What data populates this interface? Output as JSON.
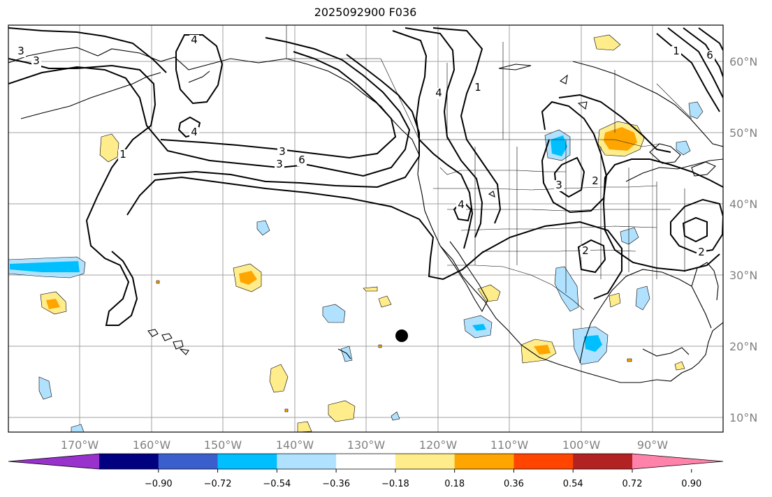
{
  "title": "2025092900 F036",
  "map": {
    "lon_labels": [
      "170°W",
      "160°W",
      "150°W",
      "140°W",
      "130°W",
      "120°W",
      "110°W",
      "100°W",
      "90°W"
    ],
    "lat_labels": [
      "60°N",
      "50°N",
      "40°N",
      "30°N",
      "20°N",
      "10°N"
    ],
    "contour_labels": [
      "3",
      "4",
      "3",
      "4",
      "1",
      "3",
      "6",
      "3",
      "1",
      "4",
      "4",
      "2",
      "3",
      "2",
      "2",
      "6",
      "1"
    ],
    "colors": {
      "land_line": "#000000",
      "grid": "#a0a0a0",
      "contour": "#000000"
    }
  },
  "colorbar": {
    "tick_labels": [
      "−0.90",
      "−0.72",
      "−0.54",
      "−0.36",
      "−0.18",
      "0.18",
      "0.36",
      "0.54",
      "0.72",
      "0.90"
    ],
    "colors": [
      "#9932cc",
      "#000080",
      "#3a5fcd",
      "#00bfff",
      "#b0e2ff",
      "#ffffff",
      "#ffec8b",
      "#ffa500",
      "#ff4500",
      "#b22222",
      "#ff82ab"
    ]
  }
}
